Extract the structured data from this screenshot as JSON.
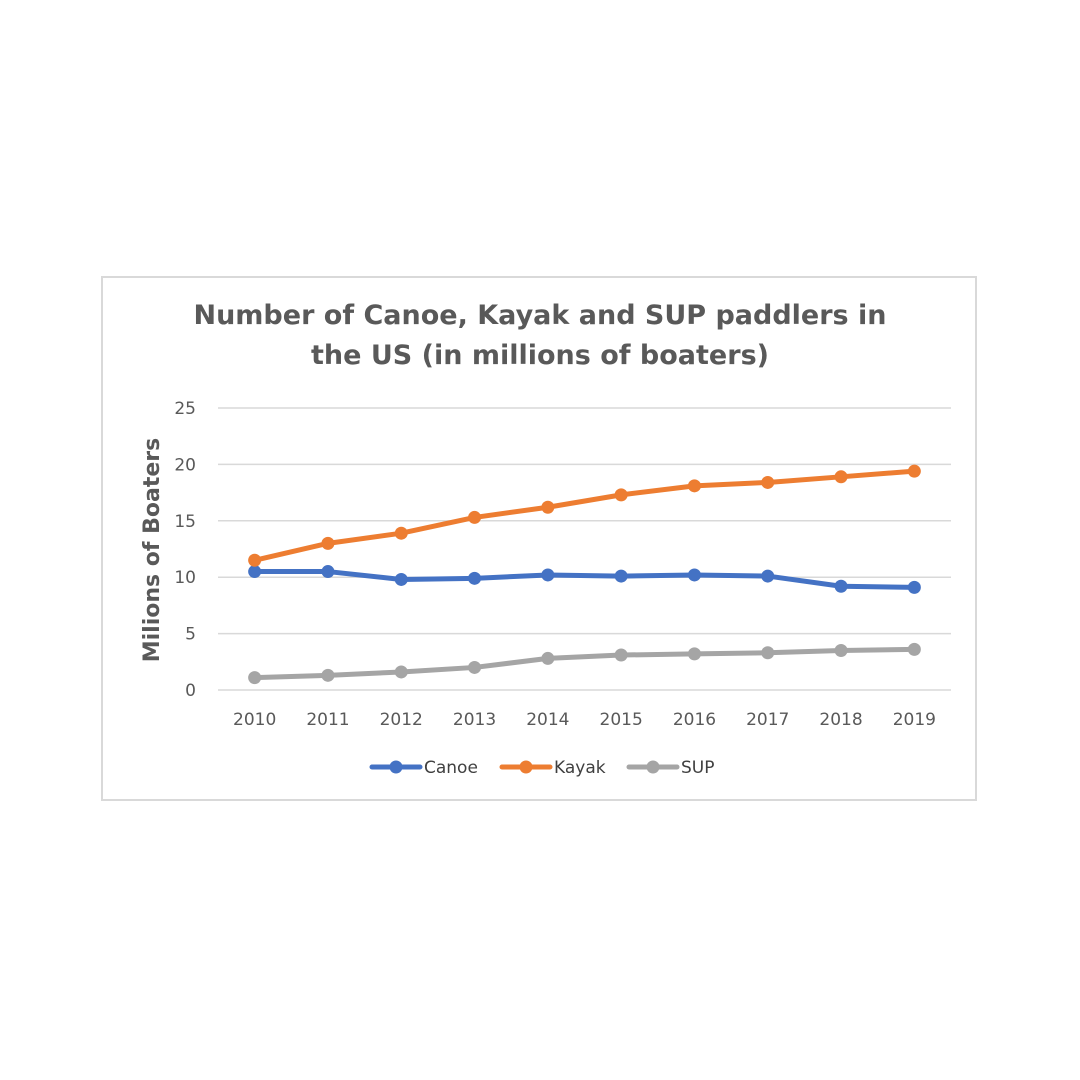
{
  "chart_data": {
    "type": "line",
    "title_lines": [
      "Number of Canoe, Kayak and SUP paddlers in",
      "the US (in millions of boaters)"
    ],
    "xlabel": "",
    "ylabel": "Milions of Boaters",
    "ylim": [
      0,
      25
    ],
    "yticks": [
      0,
      5,
      10,
      15,
      20,
      25
    ],
    "grid": true,
    "legend_position": "bottom",
    "categories": [
      "2010",
      "2011",
      "2012",
      "2013",
      "2014",
      "2015",
      "2016",
      "2017",
      "2018",
      "2019"
    ],
    "series": [
      {
        "name": "Canoe",
        "color": "#4472c4",
        "values": [
          10.5,
          10.5,
          9.8,
          9.9,
          10.2,
          10.1,
          10.2,
          10.1,
          9.2,
          9.1
        ]
      },
      {
        "name": "Kayak",
        "color": "#ed7d31",
        "values": [
          11.5,
          13.0,
          13.9,
          15.3,
          16.2,
          17.3,
          18.1,
          18.4,
          18.9,
          19.4
        ]
      },
      {
        "name": "SUP",
        "color": "#a5a5a5",
        "values": [
          1.1,
          1.3,
          1.6,
          2.0,
          2.8,
          3.1,
          3.2,
          3.3,
          3.5,
          3.6
        ]
      }
    ]
  }
}
